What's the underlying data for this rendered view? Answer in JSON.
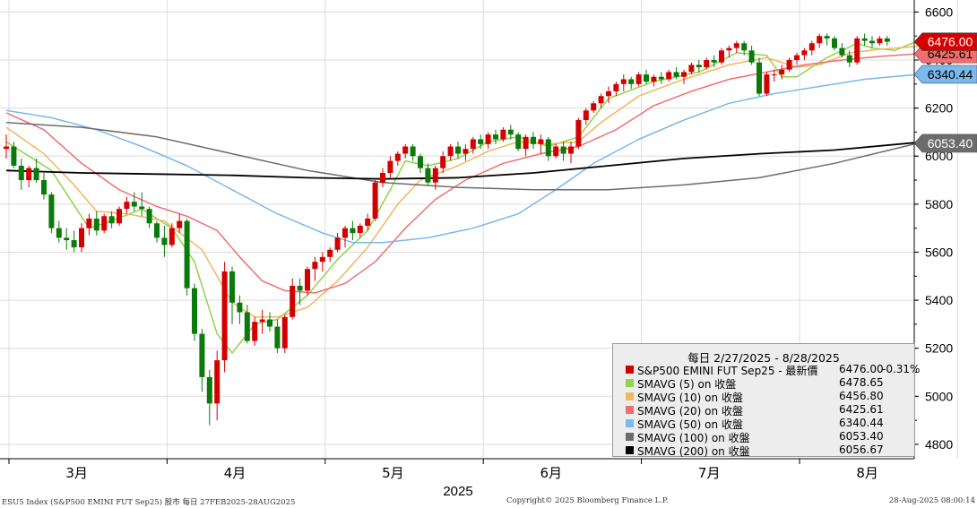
{
  "chart_data": {
    "type": "candlestick",
    "title": "每日 2/27/2025 - 8/28/2025",
    "instrument": "S&P500 EMINI FUT Sep25",
    "ylim": [
      4740,
      6650
    ],
    "yticks": [
      4800,
      5000,
      5200,
      5400,
      5600,
      5800,
      6000,
      6200,
      6400,
      6600
    ],
    "year_label": "2025",
    "month_labels": [
      {
        "label": "3月",
        "index": 9
      },
      {
        "label": "4月",
        "index": 30
      },
      {
        "label": "5月",
        "index": 51
      },
      {
        "label": "6月",
        "index": 72
      },
      {
        "label": "7月",
        "index": 93
      },
      {
        "label": "8月",
        "index": 114
      }
    ],
    "candles": [
      [
        6030,
        6090,
        5990,
        6040
      ],
      [
        6040,
        6060,
        5950,
        5960
      ],
      [
        5960,
        5990,
        5860,
        5900
      ],
      [
        5900,
        5960,
        5870,
        5950
      ],
      [
        5950,
        5990,
        5890,
        5900
      ],
      [
        5900,
        5930,
        5820,
        5840
      ],
      [
        5840,
        5850,
        5680,
        5700
      ],
      [
        5700,
        5730,
        5640,
        5660
      ],
      [
        5660,
        5700,
        5610,
        5650
      ],
      [
        5650,
        5690,
        5600,
        5620
      ],
      [
        5620,
        5720,
        5600,
        5700
      ],
      [
        5700,
        5760,
        5670,
        5740
      ],
      [
        5740,
        5770,
        5670,
        5690
      ],
      [
        5690,
        5760,
        5680,
        5750
      ],
      [
        5750,
        5770,
        5700,
        5720
      ],
      [
        5720,
        5790,
        5710,
        5780
      ],
      [
        5780,
        5830,
        5760,
        5810
      ],
      [
        5810,
        5850,
        5770,
        5790
      ],
      [
        5790,
        5850,
        5750,
        5780
      ],
      [
        5780,
        5790,
        5700,
        5720
      ],
      [
        5720,
        5730,
        5640,
        5660
      ],
      [
        5660,
        5710,
        5580,
        5630
      ],
      [
        5630,
        5720,
        5620,
        5700
      ],
      [
        5700,
        5760,
        5680,
        5730
      ],
      [
        5730,
        5740,
        5420,
        5450
      ],
      [
        5450,
        5470,
        5230,
        5260
      ],
      [
        5260,
        5280,
        5020,
        5080
      ],
      [
        5080,
        5110,
        4880,
        4970
      ],
      [
        4970,
        5190,
        4900,
        5150
      ],
      [
        5150,
        5560,
        5100,
        5520
      ],
      [
        5520,
        5540,
        5300,
        5390
      ],
      [
        5390,
        5420,
        5300,
        5350
      ],
      [
        5350,
        5380,
        5220,
        5230
      ],
      [
        5230,
        5330,
        5210,
        5310
      ],
      [
        5310,
        5360,
        5260,
        5320
      ],
      [
        5320,
        5350,
        5270,
        5290
      ],
      [
        5290,
        5320,
        5180,
        5200
      ],
      [
        5200,
        5340,
        5180,
        5330
      ],
      [
        5330,
        5490,
        5320,
        5460
      ],
      [
        5460,
        5490,
        5380,
        5440
      ],
      [
        5440,
        5540,
        5420,
        5530
      ],
      [
        5530,
        5580,
        5480,
        5560
      ],
      [
        5560,
        5600,
        5520,
        5580
      ],
      [
        5580,
        5620,
        5560,
        5610
      ],
      [
        5610,
        5680,
        5600,
        5660
      ],
      [
        5660,
        5710,
        5620,
        5700
      ],
      [
        5700,
        5730,
        5650,
        5680
      ],
      [
        5680,
        5720,
        5660,
        5710
      ],
      [
        5710,
        5760,
        5690,
        5740
      ],
      [
        5740,
        5900,
        5730,
        5890
      ],
      [
        5890,
        5950,
        5870,
        5930
      ],
      [
        5930,
        6000,
        5910,
        5980
      ],
      [
        5980,
        6020,
        5960,
        6010
      ],
      [
        6010,
        6050,
        5990,
        6040
      ],
      [
        6040,
        6050,
        5980,
        6000
      ],
      [
        6000,
        6010,
        5930,
        5950
      ],
      [
        5950,
        5970,
        5880,
        5890
      ],
      [
        5890,
        5960,
        5860,
        5950
      ],
      [
        5950,
        6020,
        5930,
        6000
      ],
      [
        6000,
        6050,
        5980,
        6040
      ],
      [
        6040,
        6060,
        5990,
        6010
      ],
      [
        6010,
        6050,
        5980,
        6030
      ],
      [
        6030,
        6080,
        6010,
        6070
      ],
      [
        6070,
        6090,
        6030,
        6050
      ],
      [
        6050,
        6100,
        6030,
        6090
      ],
      [
        6090,
        6110,
        6050,
        6070
      ],
      [
        6070,
        6120,
        6060,
        6110
      ],
      [
        6110,
        6130,
        6070,
        6090
      ],
      [
        6090,
        6100,
        6020,
        6030
      ],
      [
        6030,
        6090,
        6000,
        6080
      ],
      [
        6080,
        6100,
        6030,
        6050
      ],
      [
        6050,
        6090,
        6010,
        6070
      ],
      [
        6070,
        6080,
        5980,
        6000
      ],
      [
        6000,
        6050,
        5990,
        6040
      ],
      [
        6040,
        6060,
        5980,
        6010
      ],
      [
        6010,
        6060,
        5970,
        6040
      ],
      [
        6040,
        6160,
        6030,
        6150
      ],
      [
        6150,
        6200,
        6130,
        6190
      ],
      [
        6190,
        6230,
        6180,
        6220
      ],
      [
        6220,
        6260,
        6200,
        6250
      ],
      [
        6250,
        6290,
        6220,
        6270
      ],
      [
        6270,
        6310,
        6250,
        6300
      ],
      [
        6300,
        6340,
        6270,
        6320
      ],
      [
        6320,
        6330,
        6280,
        6300
      ],
      [
        6300,
        6350,
        6290,
        6340
      ],
      [
        6340,
        6360,
        6300,
        6310
      ],
      [
        6310,
        6340,
        6290,
        6330
      ],
      [
        6330,
        6350,
        6300,
        6320
      ],
      [
        6320,
        6360,
        6310,
        6350
      ],
      [
        6350,
        6370,
        6320,
        6330
      ],
      [
        6330,
        6360,
        6300,
        6350
      ],
      [
        6350,
        6390,
        6340,
        6380
      ],
      [
        6380,
        6400,
        6350,
        6370
      ],
      [
        6370,
        6410,
        6360,
        6400
      ],
      [
        6400,
        6420,
        6370,
        6390
      ],
      [
        6390,
        6450,
        6380,
        6440
      ],
      [
        6440,
        6460,
        6410,
        6450
      ],
      [
        6450,
        6480,
        6430,
        6470
      ],
      [
        6470,
        6480,
        6420,
        6440
      ],
      [
        6440,
        6460,
        6380,
        6390
      ],
      [
        6390,
        6410,
        6250,
        6260
      ],
      [
        6260,
        6350,
        6250,
        6340
      ],
      [
        6340,
        6360,
        6310,
        6340
      ],
      [
        6340,
        6380,
        6320,
        6360
      ],
      [
        6360,
        6410,
        6350,
        6400
      ],
      [
        6400,
        6430,
        6380,
        6420
      ],
      [
        6420,
        6450,
        6400,
        6440
      ],
      [
        6440,
        6480,
        6420,
        6470
      ],
      [
        6470,
        6510,
        6450,
        6500
      ],
      [
        6500,
        6510,
        6460,
        6490
      ],
      [
        6490,
        6500,
        6440,
        6450
      ],
      [
        6450,
        6470,
        6410,
        6420
      ],
      [
        6420,
        6440,
        6370,
        6390
      ],
      [
        6390,
        6500,
        6380,
        6490
      ],
      [
        6490,
        6510,
        6460,
        6480
      ],
      [
        6480,
        6500,
        6450,
        6470
      ],
      [
        6470,
        6500,
        6460,
        6490
      ],
      [
        6490,
        6500,
        6460,
        6476
      ]
    ],
    "moving_averages": [
      {
        "name": "SMAVG (5)",
        "color": "#8fd44a",
        "path": [
          [
            0,
            6060
          ],
          [
            6,
            5940
          ],
          [
            11,
            5700
          ],
          [
            14,
            5730
          ],
          [
            18,
            5780
          ],
          [
            22,
            5700
          ],
          [
            25,
            5560
          ],
          [
            28,
            5260
          ],
          [
            30,
            5180
          ],
          [
            33,
            5300
          ],
          [
            36,
            5320
          ],
          [
            40,
            5420
          ],
          [
            44,
            5570
          ],
          [
            48,
            5690
          ],
          [
            51,
            5860
          ],
          [
            53,
            5980
          ],
          [
            56,
            5960
          ],
          [
            60,
            5990
          ],
          [
            64,
            6060
          ],
          [
            68,
            6080
          ],
          [
            72,
            6040
          ],
          [
            76,
            6080
          ],
          [
            80,
            6240
          ],
          [
            86,
            6310
          ],
          [
            92,
            6350
          ],
          [
            97,
            6430
          ],
          [
            101,
            6420
          ],
          [
            103,
            6330
          ],
          [
            105,
            6330
          ],
          [
            109,
            6410
          ],
          [
            113,
            6470
          ],
          [
            115,
            6450
          ],
          [
            118,
            6440
          ],
          [
            121,
            6479
          ]
        ]
      },
      {
        "name": "SMAVG (10)",
        "color": "#f2b560",
        "path": [
          [
            0,
            6120
          ],
          [
            5,
            6010
          ],
          [
            9,
            5880
          ],
          [
            12,
            5770
          ],
          [
            16,
            5760
          ],
          [
            21,
            5730
          ],
          [
            26,
            5610
          ],
          [
            30,
            5390
          ],
          [
            33,
            5330
          ],
          [
            36,
            5330
          ],
          [
            40,
            5370
          ],
          [
            44,
            5480
          ],
          [
            48,
            5620
          ],
          [
            52,
            5800
          ],
          [
            55,
            5900
          ],
          [
            60,
            5960
          ],
          [
            64,
            6020
          ],
          [
            68,
            6060
          ],
          [
            72,
            6050
          ],
          [
            76,
            6060
          ],
          [
            79,
            6140
          ],
          [
            84,
            6250
          ],
          [
            90,
            6320
          ],
          [
            96,
            6380
          ],
          [
            101,
            6410
          ],
          [
            105,
            6370
          ],
          [
            108,
            6380
          ],
          [
            112,
            6430
          ],
          [
            116,
            6445
          ],
          [
            121,
            6457
          ]
        ]
      },
      {
        "name": "SMAVG (20)",
        "color": "#ef6f70",
        "path": [
          [
            0,
            6180
          ],
          [
            5,
            6110
          ],
          [
            10,
            5970
          ],
          [
            15,
            5860
          ],
          [
            20,
            5790
          ],
          [
            24,
            5750
          ],
          [
            28,
            5690
          ],
          [
            31,
            5580
          ],
          [
            34,
            5480
          ],
          [
            37,
            5440
          ],
          [
            41,
            5430
          ],
          [
            45,
            5470
          ],
          [
            49,
            5560
          ],
          [
            53,
            5700
          ],
          [
            57,
            5820
          ],
          [
            61,
            5900
          ],
          [
            66,
            5970
          ],
          [
            71,
            6010
          ],
          [
            76,
            6040
          ],
          [
            81,
            6110
          ],
          [
            86,
            6210
          ],
          [
            91,
            6270
          ],
          [
            96,
            6320
          ],
          [
            101,
            6350
          ],
          [
            106,
            6380
          ],
          [
            111,
            6400
          ],
          [
            116,
            6415
          ],
          [
            121,
            6426
          ]
        ]
      },
      {
        "name": "SMAVG (50)",
        "color": "#7ab8ee",
        "path": [
          [
            0,
            6190
          ],
          [
            6,
            6160
          ],
          [
            12,
            6110
          ],
          [
            18,
            6040
          ],
          [
            24,
            5960
          ],
          [
            30,
            5860
          ],
          [
            36,
            5760
          ],
          [
            42,
            5680
          ],
          [
            46,
            5640
          ],
          [
            50,
            5640
          ],
          [
            56,
            5660
          ],
          [
            62,
            5700
          ],
          [
            68,
            5760
          ],
          [
            73,
            5860
          ],
          [
            78,
            5970
          ],
          [
            84,
            6070
          ],
          [
            90,
            6150
          ],
          [
            96,
            6220
          ],
          [
            102,
            6260
          ],
          [
            108,
            6290
          ],
          [
            114,
            6320
          ],
          [
            121,
            6340
          ]
        ]
      },
      {
        "name": "SMAVG (100)",
        "color": "#6c6c6c",
        "path": [
          [
            0,
            6140
          ],
          [
            10,
            6120
          ],
          [
            20,
            6080
          ],
          [
            30,
            6010
          ],
          [
            40,
            5940
          ],
          [
            50,
            5890
          ],
          [
            60,
            5870
          ],
          [
            70,
            5860
          ],
          [
            80,
            5860
          ],
          [
            90,
            5880
          ],
          [
            100,
            5910
          ],
          [
            110,
            5970
          ],
          [
            121,
            6053
          ]
        ]
      },
      {
        "name": "SMAVG (200)",
        "color": "#000000",
        "path": [
          [
            0,
            5940
          ],
          [
            10,
            5930
          ],
          [
            20,
            5925
          ],
          [
            30,
            5920
          ],
          [
            40,
            5910
          ],
          [
            50,
            5905
          ],
          [
            60,
            5910
          ],
          [
            70,
            5930
          ],
          [
            80,
            5960
          ],
          [
            90,
            5990
          ],
          [
            100,
            6010
          ],
          [
            110,
            6025
          ],
          [
            121,
            6057
          ]
        ]
      }
    ],
    "price_tags": [
      {
        "text": "6476.00",
        "value": 6476.0,
        "bg": "#d40000",
        "fg": "#ffffff"
      },
      {
        "text": "6425.61",
        "value": 6425.61,
        "bg": "#ef6f70",
        "fg": "#000000"
      },
      {
        "text": "6340.44",
        "value": 6340.44,
        "bg": "#7ab8ee",
        "fg": "#000000"
      },
      {
        "text": "6053.40",
        "value": 6053.4,
        "bg": "#6c6c6c",
        "fg": "#ffffff"
      }
    ]
  },
  "legend": {
    "header": "每日 2/27/2025 - 8/28/2025",
    "rows": [
      {
        "name": "S&P500 EMINI FUT Sep25 - 最新價",
        "value": "6476.00",
        "change": "-0.31%",
        "color": "#d40000"
      },
      {
        "name": "SMAVG (5)  on 收盤",
        "value": "6478.65",
        "change": "",
        "color": "#8fd44a"
      },
      {
        "name": "SMAVG (10)  on 收盤",
        "value": "6456.80",
        "change": "",
        "color": "#f2b560"
      },
      {
        "name": "SMAVG (20)  on 收盤",
        "value": "6425.61",
        "change": "",
        "color": "#ef6f70"
      },
      {
        "name": "SMAVG (50)  on 收盤",
        "value": "6340.44",
        "change": "",
        "color": "#7ab8ee"
      },
      {
        "name": "SMAVG (100)  on 收盤",
        "value": "6053.40",
        "change": "",
        "color": "#6c6c6c"
      },
      {
        "name": "SMAVG (200)  on 收盤",
        "value": "6056.67",
        "change": "",
        "color": "#000000"
      }
    ]
  },
  "footer": {
    "left": "ESU5 Index (S&P500 EMINI FUT  Sep25) 股市  每日 27FEB2025-28AUG2025",
    "center": "Copyright© 2025 Bloomberg Finance L.P.",
    "right": "28-Aug-2025 08:00:14"
  },
  "colors": {
    "up": "#d40000",
    "down": "#0a7a0a",
    "grid": "#dcdcdc",
    "axis": "#000000"
  }
}
